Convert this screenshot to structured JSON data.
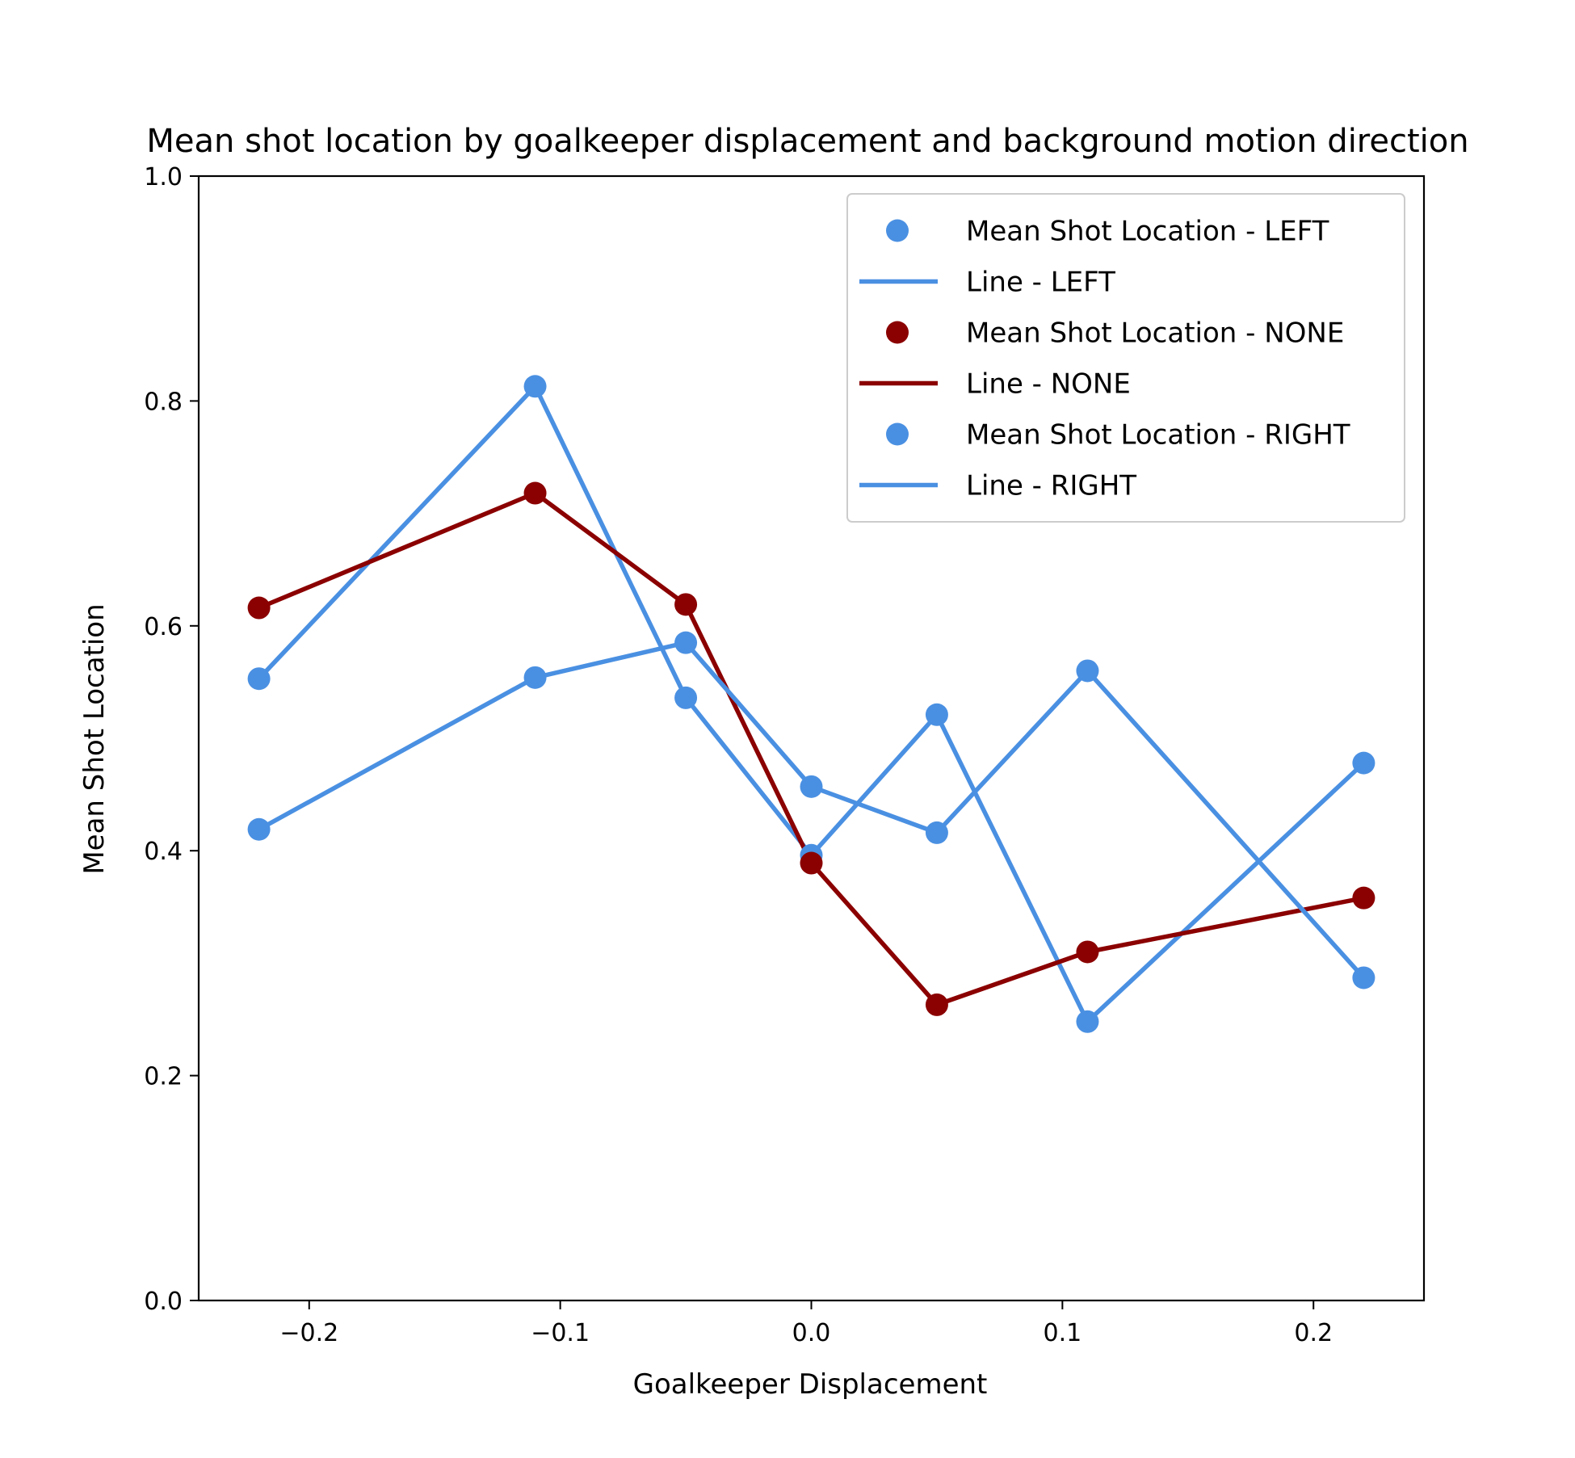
{
  "chart_data": {
    "type": "line",
    "title": "Mean shot location by goalkeeper displacement and background motion direction",
    "xlabel": "Goalkeeper Displacement",
    "ylabel": "Mean Shot Location",
    "xlim": [
      -0.244,
      0.244
    ],
    "ylim": [
      0.0,
      1.0
    ],
    "xticks": [
      -0.2,
      -0.1,
      0.0,
      0.1,
      0.2
    ],
    "xtick_labels": [
      "−0.2",
      "−0.1",
      "0.0",
      "0.1",
      "0.2"
    ],
    "yticks": [
      0.0,
      0.2,
      0.4,
      0.6,
      0.8,
      1.0
    ],
    "ytick_labels": [
      "0.0",
      "0.2",
      "0.4",
      "0.6",
      "0.8",
      "1.0"
    ],
    "grid": false,
    "legend_position": "top-right",
    "series": [
      {
        "key": "left",
        "color": "#4a90e2",
        "x": [
          -0.22,
          -0.11,
          -0.05,
          0.0,
          0.05,
          0.11,
          0.22
        ],
        "y": [
          0.553,
          0.813,
          0.536,
          0.396,
          0.521,
          0.248,
          0.478
        ]
      },
      {
        "key": "none",
        "color": "#8b0000",
        "x": [
          -0.22,
          -0.11,
          -0.05,
          0.0,
          0.05,
          0.11,
          0.22
        ],
        "y": [
          0.616,
          0.718,
          0.619,
          0.389,
          0.263,
          0.31,
          0.358
        ]
      },
      {
        "key": "right",
        "color": "#4a90e2",
        "x": [
          -0.22,
          -0.11,
          -0.05,
          0.0,
          0.05,
          0.11,
          0.22
        ],
        "y": [
          0.419,
          0.554,
          0.585,
          0.457,
          0.416,
          0.56,
          0.287
        ]
      }
    ],
    "legend": [
      {
        "label": "Mean Shot Location - LEFT",
        "kind": "marker",
        "color": "#4a90e2"
      },
      {
        "label": "Line - LEFT",
        "kind": "line",
        "color": "#4a90e2"
      },
      {
        "label": "Mean Shot Location - NONE",
        "kind": "marker",
        "color": "#8b0000"
      },
      {
        "label": "Line - NONE",
        "kind": "line",
        "color": "#8b0000"
      },
      {
        "label": "Mean Shot Location - RIGHT",
        "kind": "marker",
        "color": "#4a90e2"
      },
      {
        "label": "Line - RIGHT",
        "kind": "line",
        "color": "#4a90e2"
      }
    ]
  }
}
